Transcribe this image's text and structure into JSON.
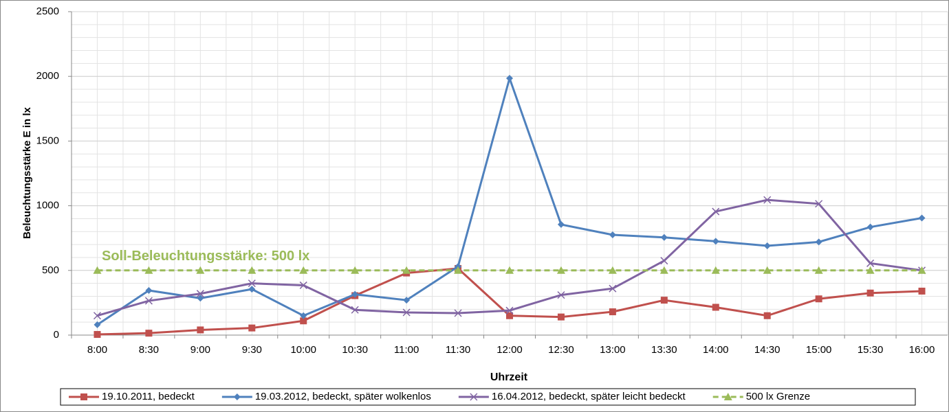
{
  "chart_data": {
    "type": "line",
    "ylabel": "Beleuchtungsstärke E in lx",
    "xlabel": "Uhrzeit",
    "annotation": "Soll-Beleuchtungsstärke: 500 lx",
    "annotation_color": "#9bbb59",
    "categories": [
      "8:00",
      "8:30",
      "9:00",
      "9:30",
      "10:00",
      "10:30",
      "11:00",
      "11:30",
      "12:00",
      "12:30",
      "13:00",
      "13:30",
      "14:00",
      "14:30",
      "15:00",
      "15:30",
      "16:00"
    ],
    "series": [
      {
        "name": "19.10.2011, bedeckt",
        "color": "#c0504d",
        "marker": "square",
        "values": [
          5,
          15,
          40,
          55,
          110,
          305,
          480,
          515,
          150,
          140,
          180,
          270,
          215,
          150,
          280,
          325,
          340
        ]
      },
      {
        "name": "19.03.2012, bedeckt, später wolkenlos",
        "color": "#4f81bd",
        "marker": "diamond",
        "values": [
          80,
          345,
          285,
          355,
          150,
          315,
          270,
          530,
          1985,
          855,
          775,
          755,
          725,
          690,
          720,
          835,
          905
        ]
      },
      {
        "name": "16.04.2012, bedeckt, später leicht bedeckt",
        "color": "#8064a2",
        "marker": "x",
        "values": [
          150,
          265,
          320,
          400,
          385,
          195,
          175,
          170,
          190,
          310,
          360,
          575,
          955,
          1045,
          1015,
          555,
          500
        ]
      },
      {
        "name": "500 lx Grenze",
        "color": "#9bbb59",
        "marker": "triangle",
        "dashed": true,
        "values": [
          500,
          500,
          500,
          500,
          500,
          500,
          500,
          500,
          500,
          500,
          500,
          500,
          500,
          500,
          500,
          500,
          500
        ]
      }
    ],
    "ylim": [
      0,
      2500
    ],
    "yticks": [
      0,
      500,
      1000,
      1500,
      2000,
      2500
    ],
    "grid": true,
    "minor_grid_step": 100,
    "legend": "bottom"
  }
}
